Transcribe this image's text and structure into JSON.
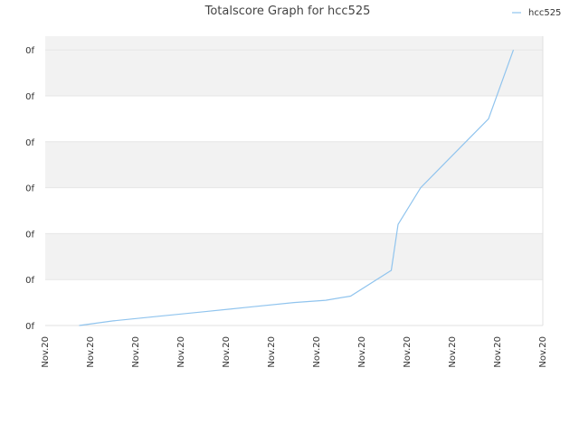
{
  "chart_data": {
    "type": "line",
    "title": "Totalscore Graph for hcc525",
    "xlabel": "",
    "ylabel": "",
    "x_tick_labels": [
      "Nov.20",
      "Nov.20",
      "Nov.20",
      "Nov.20",
      "Nov.20",
      "Nov.20",
      "Nov.20",
      "Nov.20",
      "Nov.20",
      "Nov.20",
      "Nov.20",
      "Nov.20"
    ],
    "y_tick_labels": [
      "0f",
      "0f",
      "0f",
      "0f",
      "0f",
      "0f",
      "0f"
    ],
    "xlim": [
      0,
      11
    ],
    "ylim": [
      0,
      6.3
    ],
    "legend": {
      "position": "top-right",
      "entries": [
        "hcc525"
      ]
    },
    "grid": true,
    "colors": {
      "line": "#90c4ee",
      "band": "#f2f2f2",
      "grid": "#e6e6e6",
      "axis": "#e0e0e0"
    },
    "series": [
      {
        "name": "hcc525",
        "x": [
          0.75,
          1.5,
          2.5,
          3.5,
          4.5,
          5.5,
          6.2,
          6.75,
          7.65,
          7.8,
          8.3,
          8.9,
          9.8,
          10.35
        ],
        "y": [
          0.0,
          0.1,
          0.2,
          0.3,
          0.4,
          0.5,
          0.55,
          0.64,
          1.2,
          2.2,
          3.0,
          3.6,
          4.5,
          6.0
        ]
      }
    ]
  }
}
